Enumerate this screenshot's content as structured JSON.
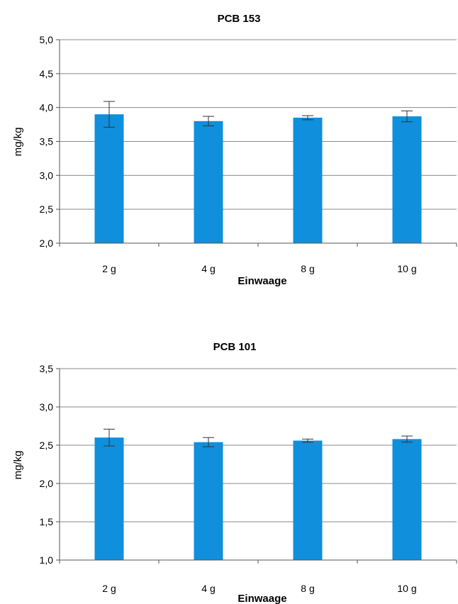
{
  "chart_data": [
    {
      "type": "bar",
      "title": "PCB 153",
      "xlabel": "Einwaage",
      "ylabel": "mg/kg",
      "categories": [
        "2 g",
        "4 g",
        "8 g",
        "10 g"
      ],
      "values": [
        3.9,
        3.8,
        3.85,
        3.87
      ],
      "errors": [
        0.19,
        0.07,
        0.03,
        0.08
      ],
      "ylim": [
        2.0,
        5.0
      ],
      "ytick_step": 0.5,
      "yticks": [
        "2,0",
        "2,5",
        "3,0",
        "3,5",
        "4,0",
        "4,5",
        "5,0"
      ],
      "grid": true,
      "bar_color": "#0f8fdc"
    },
    {
      "type": "bar",
      "title": "PCB 101",
      "xlabel": "Einwaage",
      "ylabel": "mg/kg",
      "categories": [
        "2 g",
        "4 g",
        "8 g",
        "10 g"
      ],
      "values": [
        2.6,
        2.54,
        2.56,
        2.58
      ],
      "errors": [
        0.11,
        0.06,
        0.02,
        0.04
      ],
      "ylim": [
        1.0,
        3.5
      ],
      "ytick_step": 0.5,
      "yticks": [
        "1,0",
        "1,5",
        "2,0",
        "2,5",
        "3,0",
        "3,5"
      ],
      "grid": true,
      "bar_color": "#0f8fdc"
    }
  ]
}
